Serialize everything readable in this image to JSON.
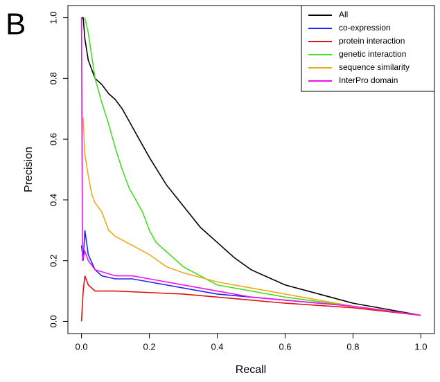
{
  "chart_data": {
    "type": "line",
    "panel_label": "B",
    "xlabel": "Recall",
    "ylabel": "Precision",
    "xlim": [
      -0.04,
      1.04
    ],
    "ylim": [
      -0.04,
      1.04
    ],
    "xticks": [
      {
        "value": 0,
        "label": "0.0"
      },
      0.2,
      0.4,
      0.6,
      0.8,
      {
        "value": 1,
        "label": "1.0"
      }
    ],
    "yticks": [
      {
        "value": 0,
        "label": "0.0"
      },
      0.2,
      0.4,
      0.6,
      0.8,
      {
        "value": 1,
        "label": "1.0"
      }
    ],
    "legend": "topright",
    "series": [
      {
        "name": "All",
        "color": "#000000",
        "x": [
          0,
          0.005,
          0.01,
          0.02,
          0.04,
          0.06,
          0.08,
          0.1,
          0.12,
          0.14,
          0.16,
          0.2,
          0.25,
          0.3,
          0.35,
          0.4,
          0.45,
          0.5,
          0.6,
          0.7,
          0.8,
          0.9,
          1.0
        ],
        "values": [
          1.0,
          1.0,
          0.93,
          0.86,
          0.8,
          0.78,
          0.75,
          0.73,
          0.7,
          0.66,
          0.62,
          0.54,
          0.45,
          0.38,
          0.31,
          0.26,
          0.21,
          0.17,
          0.12,
          0.09,
          0.06,
          0.04,
          0.02
        ]
      },
      {
        "name": "co-expression",
        "color": "#2222ee",
        "x": [
          0,
          0.005,
          0.01,
          0.02,
          0.04,
          0.06,
          0.1,
          0.15,
          0.2,
          0.3,
          0.4,
          0.5,
          0.6,
          0.8,
          1.0
        ],
        "values": [
          0.25,
          0.2,
          0.3,
          0.22,
          0.17,
          0.15,
          0.14,
          0.14,
          0.13,
          0.11,
          0.09,
          0.08,
          0.07,
          0.05,
          0.02
        ]
      },
      {
        "name": "protein interaction",
        "color": "#dd1111",
        "x": [
          0,
          0.005,
          0.01,
          0.02,
          0.04,
          0.1,
          0.2,
          0.3,
          0.4,
          0.5,
          0.6,
          0.8,
          1.0
        ],
        "values": [
          0,
          0.1,
          0.15,
          0.12,
          0.1,
          0.1,
          0.095,
          0.09,
          0.08,
          0.07,
          0.06,
          0.045,
          0.02
        ]
      },
      {
        "name": "genetic interaction",
        "color": "#44dd22",
        "x": [
          0.01,
          0.02,
          0.04,
          0.06,
          0.08,
          0.1,
          0.12,
          0.14,
          0.16,
          0.18,
          0.2,
          0.22,
          0.25,
          0.3,
          0.35,
          0.4,
          0.5,
          0.6,
          0.8,
          1.0
        ],
        "values": [
          1.0,
          0.95,
          0.8,
          0.72,
          0.65,
          0.57,
          0.5,
          0.44,
          0.4,
          0.36,
          0.3,
          0.26,
          0.23,
          0.18,
          0.15,
          0.12,
          0.1,
          0.08,
          0.05,
          0.02
        ]
      },
      {
        "name": "sequence similarity",
        "color": "#f0a818",
        "x": [
          0.005,
          0.01,
          0.02,
          0.03,
          0.04,
          0.06,
          0.08,
          0.1,
          0.15,
          0.2,
          0.25,
          0.3,
          0.4,
          0.5,
          0.6,
          0.8,
          1.0
        ],
        "values": [
          0.67,
          0.55,
          0.48,
          0.42,
          0.39,
          0.36,
          0.3,
          0.28,
          0.25,
          0.22,
          0.18,
          0.16,
          0.13,
          0.11,
          0.09,
          0.05,
          0.02
        ]
      },
      {
        "name": "InterPro domain",
        "color": "#ee11ee",
        "x": [
          0,
          0.003,
          0.01,
          0.02,
          0.04,
          0.1,
          0.15,
          0.2,
          0.3,
          0.4,
          0.5,
          0.6,
          0.8,
          1.0
        ],
        "values": [
          1.0,
          0.2,
          0.23,
          0.2,
          0.17,
          0.15,
          0.15,
          0.14,
          0.12,
          0.1,
          0.08,
          0.07,
          0.05,
          0.02
        ]
      }
    ]
  }
}
